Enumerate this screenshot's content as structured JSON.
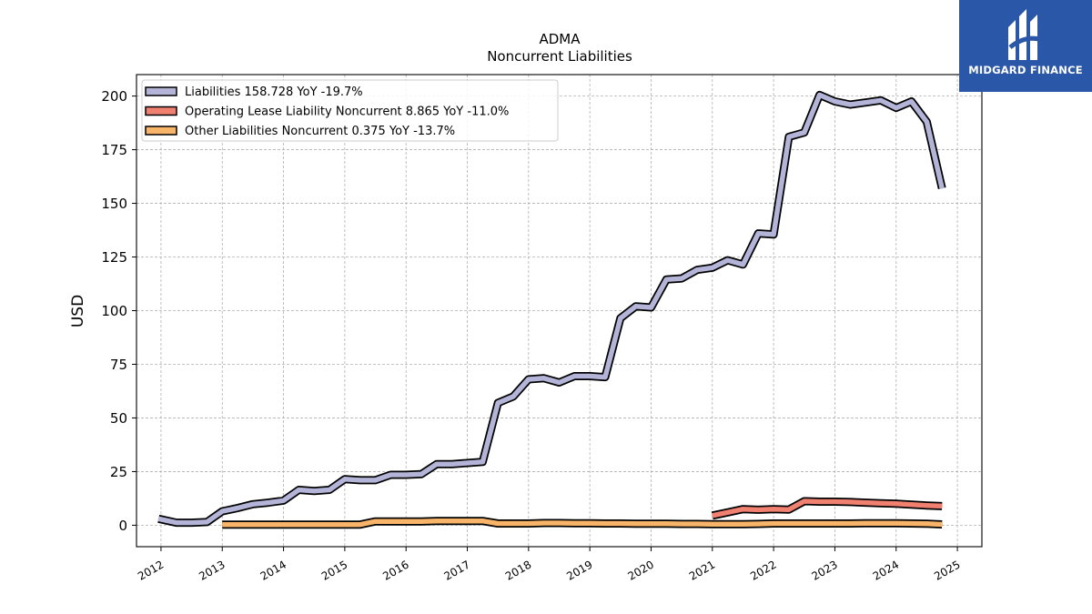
{
  "chart_data": {
    "type": "line",
    "title": "ADMA",
    "subtitle": "Noncurrent  Liabilities",
    "ylabel": "USD",
    "xlabel": "",
    "xlim": [
      2011.6,
      2025.4
    ],
    "ylim": [
      -10,
      210
    ],
    "x_ticks": [
      "2012",
      "2013",
      "2014",
      "2015",
      "2016",
      "2017",
      "2018",
      "2019",
      "2020",
      "2021",
      "2022",
      "2023",
      "2024",
      "2025"
    ],
    "y_ticks": [
      0,
      25,
      50,
      75,
      100,
      125,
      150,
      175,
      200
    ],
    "grid": true,
    "legend_position": "top-left",
    "series": [
      {
        "name": "Liabilities  158.728 YoY -19.7%",
        "color": "#b4b4d8",
        "points": [
          [
            2011.96,
            3.0
          ],
          [
            2012.25,
            1.2
          ],
          [
            2012.5,
            1.2
          ],
          [
            2012.75,
            1.5
          ],
          [
            2013.0,
            6.5
          ],
          [
            2013.25,
            8.0
          ],
          [
            2013.5,
            9.8
          ],
          [
            2013.75,
            10.5
          ],
          [
            2014.0,
            11.5
          ],
          [
            2014.25,
            16.5
          ],
          [
            2014.5,
            16.0
          ],
          [
            2014.75,
            16.5
          ],
          [
            2015.0,
            21.5
          ],
          [
            2015.25,
            21.0
          ],
          [
            2015.5,
            21.0
          ],
          [
            2015.75,
            23.5
          ],
          [
            2016.0,
            23.5
          ],
          [
            2016.25,
            23.8
          ],
          [
            2016.5,
            28.5
          ],
          [
            2016.75,
            28.5
          ],
          [
            2017.0,
            29.0
          ],
          [
            2017.25,
            29.5
          ],
          [
            2017.5,
            57.0
          ],
          [
            2017.75,
            60.0
          ],
          [
            2018.0,
            68.0
          ],
          [
            2018.25,
            68.5
          ],
          [
            2018.5,
            66.5
          ],
          [
            2018.75,
            69.5
          ],
          [
            2019.0,
            69.5
          ],
          [
            2019.25,
            69.0
          ],
          [
            2019.5,
            96.5
          ],
          [
            2019.75,
            102.0
          ],
          [
            2020.0,
            101.5
          ],
          [
            2020.25,
            114.5
          ],
          [
            2020.5,
            115.0
          ],
          [
            2020.75,
            119.0
          ],
          [
            2021.0,
            120.0
          ],
          [
            2021.25,
            123.5
          ],
          [
            2021.5,
            121.5
          ],
          [
            2021.75,
            136.0
          ],
          [
            2022.0,
            135.5
          ],
          [
            2022.25,
            181.0
          ],
          [
            2022.5,
            183.0
          ],
          [
            2022.75,
            200.5
          ],
          [
            2023.0,
            197.5
          ],
          [
            2023.25,
            196.0
          ],
          [
            2023.5,
            197.0
          ],
          [
            2023.75,
            198.0
          ],
          [
            2024.0,
            194.5
          ],
          [
            2024.25,
            197.5
          ],
          [
            2024.5,
            188.0
          ],
          [
            2024.75,
            157.0
          ]
        ]
      },
      {
        "name": "Operating Lease Liability Noncurrent  8.865 YoY -11.0%",
        "color": "#f08070",
        "points": [
          [
            2021.0,
            4.5
          ],
          [
            2021.25,
            6.0
          ],
          [
            2021.5,
            7.5
          ],
          [
            2021.75,
            7.2
          ],
          [
            2022.0,
            7.5
          ],
          [
            2022.25,
            7.3
          ],
          [
            2022.5,
            11.2
          ],
          [
            2022.75,
            11.0
          ],
          [
            2023.0,
            11.0
          ],
          [
            2023.25,
            10.8
          ],
          [
            2023.5,
            10.5
          ],
          [
            2023.75,
            10.2
          ],
          [
            2024.0,
            10.0
          ],
          [
            2024.25,
            9.6
          ],
          [
            2024.5,
            9.2
          ],
          [
            2024.75,
            8.9
          ]
        ]
      },
      {
        "name": "Other Liabilities Noncurrent  0.375 YoY -13.7%",
        "color": "#f8b468",
        "points": [
          [
            2013.0,
            0.3
          ],
          [
            2013.25,
            0.3
          ],
          [
            2013.5,
            0.3
          ],
          [
            2013.75,
            0.3
          ],
          [
            2014.0,
            0.3
          ],
          [
            2014.25,
            0.3
          ],
          [
            2014.5,
            0.3
          ],
          [
            2014.75,
            0.3
          ],
          [
            2015.0,
            0.3
          ],
          [
            2015.25,
            0.3
          ],
          [
            2015.5,
            1.8
          ],
          [
            2015.75,
            1.8
          ],
          [
            2016.0,
            1.8
          ],
          [
            2016.25,
            1.8
          ],
          [
            2016.5,
            2.0
          ],
          [
            2016.75,
            2.0
          ],
          [
            2017.0,
            2.0
          ],
          [
            2017.25,
            2.0
          ],
          [
            2017.5,
            0.8
          ],
          [
            2017.75,
            0.8
          ],
          [
            2018.0,
            0.8
          ],
          [
            2018.25,
            1.0
          ],
          [
            2018.5,
            1.0
          ],
          [
            2018.75,
            0.9
          ],
          [
            2019.0,
            0.9
          ],
          [
            2019.25,
            0.8
          ],
          [
            2019.5,
            0.8
          ],
          [
            2019.75,
            0.7
          ],
          [
            2020.0,
            0.7
          ],
          [
            2020.25,
            0.7
          ],
          [
            2020.5,
            0.6
          ],
          [
            2020.75,
            0.6
          ],
          [
            2021.0,
            0.5
          ],
          [
            2021.25,
            0.5
          ],
          [
            2021.5,
            0.5
          ],
          [
            2021.75,
            0.6
          ],
          [
            2022.0,
            0.8
          ],
          [
            2022.25,
            0.8
          ],
          [
            2022.5,
            0.8
          ],
          [
            2022.75,
            0.8
          ],
          [
            2023.0,
            0.8
          ],
          [
            2023.25,
            0.8
          ],
          [
            2023.5,
            0.9
          ],
          [
            2023.75,
            0.9
          ],
          [
            2024.0,
            0.9
          ],
          [
            2024.25,
            0.8
          ],
          [
            2024.5,
            0.7
          ],
          [
            2024.75,
            0.4
          ]
        ]
      }
    ]
  },
  "branding": {
    "logo_text": "MIDGARD FINANCE",
    "logo_icon": "midgard-finance-logo-icon",
    "logo_bg": "#2a57a8"
  }
}
